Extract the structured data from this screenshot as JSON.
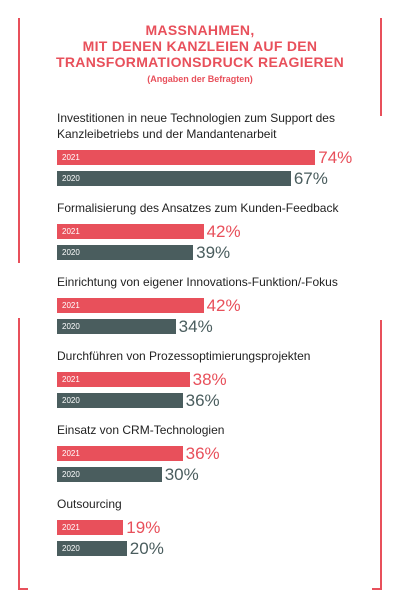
{
  "chart_data": {
    "type": "bar",
    "orientation": "horizontal",
    "title": [
      "MASSNAHMEN,",
      "MIT DENEN KANZLEIEN AUF DEN",
      "TRANSFORMATIONSDRUCK REAGIEREN"
    ],
    "subtitle": "(Angaben der Befragten)",
    "categories": [
      "Investitionen in neue Technologien zum Support des Kanzleibetriebs und der Mandantenarbeit",
      "Formalisierung des Ansatzes zum Kunden-Feedback",
      "Einrichtung von eigener Innovations-Funktion/-Fokus",
      "Durchführen von Prozessoptimierungsprojekten",
      "Einsatz von CRM-Technologien",
      "Outsourcing"
    ],
    "series": [
      {
        "name": "2021",
        "color": "#e8505b",
        "values": [
          74,
          42,
          42,
          38,
          36,
          19
        ],
        "value_labels": [
          "74%",
          "42%",
          "42%",
          "38%",
          "36%",
          "19%"
        ]
      },
      {
        "name": "2020",
        "color": "#4a5d5e",
        "values": [
          67,
          39,
          34,
          36,
          30,
          20
        ],
        "value_labels": [
          "67%",
          "39%",
          "34%",
          "36%",
          "30%",
          "20%"
        ]
      }
    ]
  }
}
